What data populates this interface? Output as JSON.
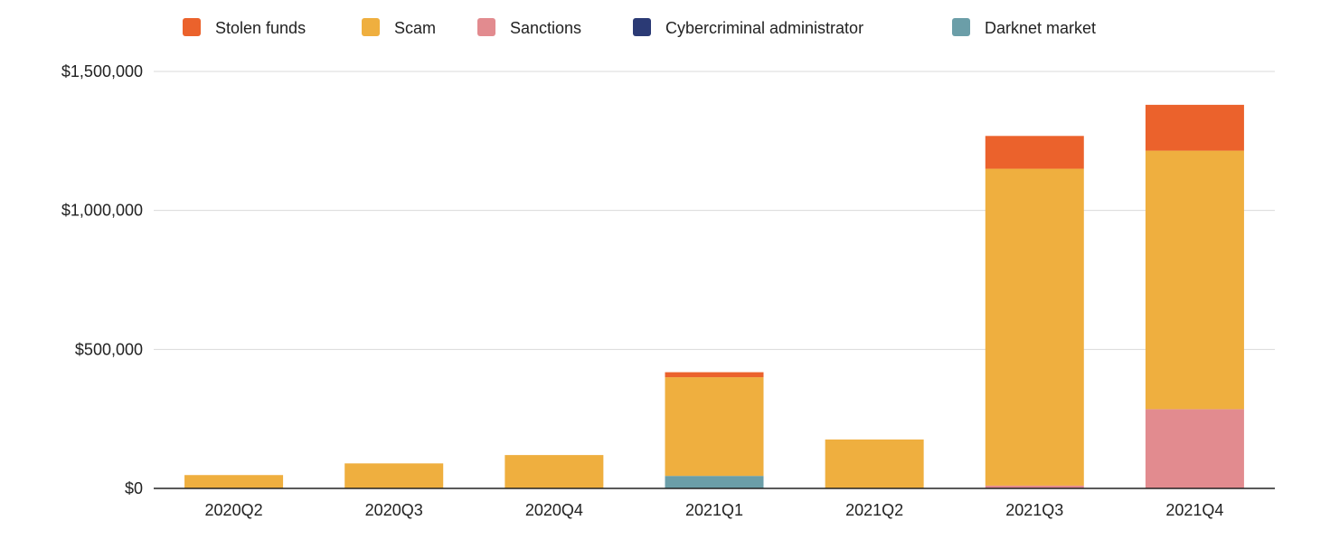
{
  "chart_data": {
    "type": "bar",
    "stacked": true,
    "title": "",
    "xlabel": "",
    "ylabel": "",
    "categories": [
      "2020Q2",
      "2020Q3",
      "2020Q4",
      "2021Q1",
      "2021Q2",
      "2021Q3",
      "2021Q4"
    ],
    "ylim": [
      0,
      1500000
    ],
    "yticks": [
      0,
      500000,
      1000000,
      1500000
    ],
    "ytick_labels": [
      "$0",
      "$500,000",
      "$1,000,000",
      "$1,500,000"
    ],
    "grid": true,
    "legend_position": "top",
    "series": [
      {
        "name": "Darknet market",
        "color": "#6b9ea8",
        "values": [
          0,
          0,
          0,
          45000,
          0,
          0,
          0
        ]
      },
      {
        "name": "Cybercriminal administrator",
        "color": "#2b3a75",
        "values": [
          0,
          0,
          0,
          0,
          0,
          0,
          0
        ]
      },
      {
        "name": "Sanctions",
        "color": "#e28b8f",
        "values": [
          0,
          0,
          0,
          0,
          0,
          10000,
          285000
        ]
      },
      {
        "name": "Scam",
        "color": "#efaf3f",
        "values": [
          48000,
          90000,
          120000,
          355000,
          176000,
          1140000,
          930000
        ]
      },
      {
        "name": "Stolen funds",
        "color": "#eb622c",
        "values": [
          0,
          0,
          0,
          18000,
          0,
          118000,
          165000
        ]
      }
    ],
    "legend_order": [
      "Stolen funds",
      "Scam",
      "Sanctions",
      "Cybercriminal administrator",
      "Darknet market"
    ]
  }
}
